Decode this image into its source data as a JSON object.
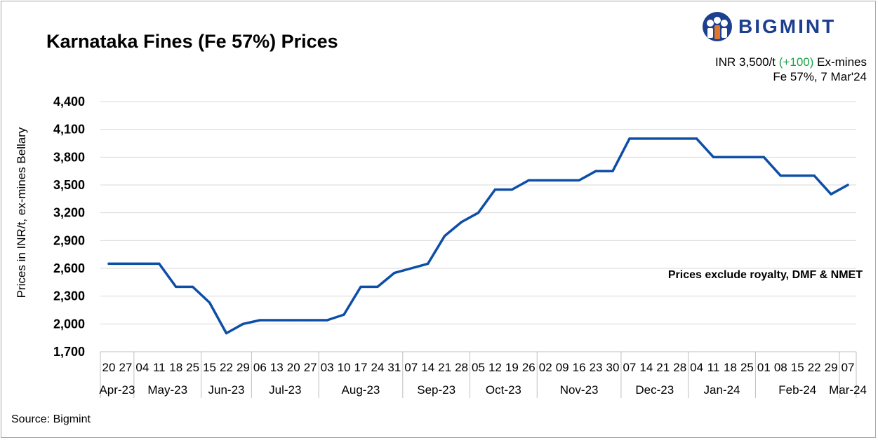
{
  "title": "Karnataka Fines (Fe 57%) Prices",
  "brand": {
    "name": "BIGMINT",
    "color": "#1d3f8f"
  },
  "headline": {
    "price": "INR 3,500/t",
    "change": "(+100)",
    "basis": "Ex-mines",
    "spec": "Fe 57%, 7 Mar'24",
    "change_color": "#1aa34a"
  },
  "note": "Prices exclude royalty, DMF & NMET",
  "source": "Source: Bigmint",
  "chart_data": {
    "type": "line",
    "title": "Karnataka Fines (Fe 57%) Prices",
    "ylabel": "Prices in INR/t, ex-mines Bellary",
    "xlabel": "",
    "ylim": [
      1700,
      4400
    ],
    "yticks": [
      1700,
      2000,
      2300,
      2600,
      2900,
      3200,
      3500,
      3800,
      4100,
      4400
    ],
    "ytick_labels": [
      "1,700",
      "2,000",
      "2,300",
      "2,600",
      "2,900",
      "3,200",
      "3,500",
      "3,800",
      "4,100",
      "4,400"
    ],
    "grid": true,
    "line_color": "#0d4ea6",
    "x": [
      "20",
      "27",
      "04",
      "11",
      "18",
      "25",
      "15",
      "22",
      "29",
      "06",
      "13",
      "20",
      "27",
      "03",
      "10",
      "17",
      "24",
      "31",
      "07",
      "14",
      "21",
      "28",
      "05",
      "12",
      "19",
      "26",
      "02",
      "09",
      "16",
      "23",
      "30",
      "07",
      "14",
      "21",
      "28",
      "04",
      "11",
      "18",
      "25",
      "01",
      "08",
      "15",
      "22",
      "29",
      "07"
    ],
    "months": [
      {
        "label": "Apr-23",
        "count": 2
      },
      {
        "label": "May-23",
        "count": 4
      },
      {
        "label": "Jun-23",
        "count": 3
      },
      {
        "label": "Jul-23",
        "count": 4
      },
      {
        "label": "Aug-23",
        "count": 5
      },
      {
        "label": "Sep-23",
        "count": 4
      },
      {
        "label": "Oct-23",
        "count": 4
      },
      {
        "label": "Nov-23",
        "count": 5
      },
      {
        "label": "Dec-23",
        "count": 4
      },
      {
        "label": "Jan-24",
        "count": 4
      },
      {
        "label": "Feb-24",
        "count": 5
      },
      {
        "label": "Mar-24",
        "count": 1
      }
    ],
    "series": [
      {
        "values": [
          2650,
          2650,
          2650,
          2650,
          2400,
          2400,
          2230,
          1900,
          2000,
          2040,
          2040,
          2040,
          2040,
          2040,
          2100,
          2400,
          2400,
          2550,
          2600,
          2650,
          2950,
          3100,
          3200,
          3450,
          3450,
          3550,
          3550,
          3550,
          3550,
          3650,
          3650,
          4000,
          4000,
          4000,
          4000,
          4000,
          3800,
          3800,
          3800,
          3800,
          3600,
          3600,
          3600,
          3400,
          3500
        ]
      }
    ]
  }
}
